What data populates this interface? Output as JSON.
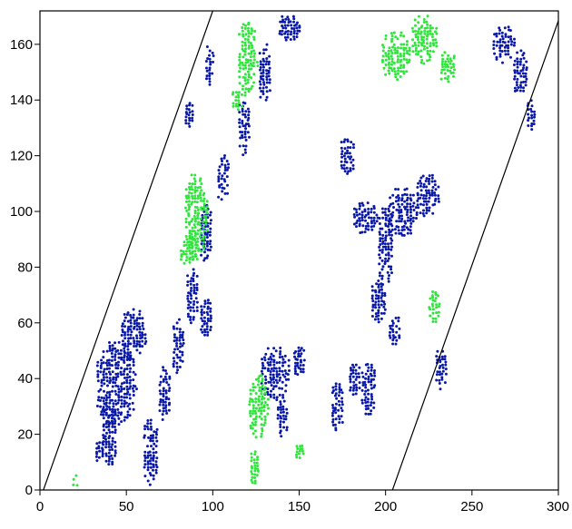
{
  "chart_data": {
    "type": "scatter",
    "title": "",
    "xlabel": "",
    "ylabel": "",
    "xlim": [
      0,
      300
    ],
    "ylim": [
      0,
      172
    ],
    "x_ticks": [
      "0",
      "50",
      "100",
      "150",
      "200",
      "250",
      "300"
    ],
    "y_ticks": [
      "0",
      "20",
      "40",
      "60",
      "80",
      "100",
      "120",
      "140",
      "160"
    ],
    "grid": false,
    "legend": "none",
    "boundary_lines": [
      {
        "x": [
          2,
          100
        ],
        "y": [
          0,
          172
        ]
      },
      {
        "x": [
          204,
          302
        ],
        "y": [
          0,
          172
        ]
      }
    ],
    "series": [
      {
        "color": "#0a18a8",
        "regions": [
          {
            "center": [
              44,
              38
            ],
            "rx": 12,
            "ry": 16
          },
          {
            "center": [
              54,
              56
            ],
            "rx": 8,
            "ry": 10
          },
          {
            "center": [
              40,
              20
            ],
            "rx": 5,
            "ry": 12
          },
          {
            "center": [
              34,
              14
            ],
            "rx": 3,
            "ry": 5
          },
          {
            "center": [
              98,
              152
            ],
            "rx": 3,
            "ry": 8
          },
          {
            "center": [
              86,
              135
            ],
            "rx": 3,
            "ry": 5
          },
          {
            "center": [
              64,
              14
            ],
            "rx": 5,
            "ry": 12
          },
          {
            "center": [
              72,
              35
            ],
            "rx": 4,
            "ry": 10
          },
          {
            "center": [
              80,
              52
            ],
            "rx": 4,
            "ry": 10
          },
          {
            "center": [
              88,
              70
            ],
            "rx": 4,
            "ry": 10
          },
          {
            "center": [
              96,
              92
            ],
            "rx": 4,
            "ry": 11
          },
          {
            "center": [
              106,
              112
            ],
            "rx": 4,
            "ry": 9
          },
          {
            "center": [
              118,
              130
            ],
            "rx": 4,
            "ry": 10
          },
          {
            "center": [
              130,
              150
            ],
            "rx": 4,
            "ry": 11
          },
          {
            "center": [
              144,
              166
            ],
            "rx": 7,
            "ry": 5
          },
          {
            "center": [
              96,
              62
            ],
            "rx": 4,
            "ry": 7
          },
          {
            "center": [
              136,
              42
            ],
            "rx": 9,
            "ry": 10
          },
          {
            "center": [
              150,
              46
            ],
            "rx": 4,
            "ry": 6
          },
          {
            "center": [
              140,
              27
            ],
            "rx": 4,
            "ry": 8
          },
          {
            "center": [
              172,
              30
            ],
            "rx": 4,
            "ry": 9
          },
          {
            "center": [
              182,
              40
            ],
            "rx": 4,
            "ry": 6
          },
          {
            "center": [
              190,
              36
            ],
            "rx": 5,
            "ry": 10
          },
          {
            "center": [
              178,
              120
            ],
            "rx": 5,
            "ry": 7
          },
          {
            "center": [
              188,
              98
            ],
            "rx": 8,
            "ry": 6
          },
          {
            "center": [
              200,
              88
            ],
            "rx": 5,
            "ry": 16
          },
          {
            "center": [
              210,
              100
            ],
            "rx": 9,
            "ry": 9
          },
          {
            "center": [
              224,
              106
            ],
            "rx": 7,
            "ry": 8
          },
          {
            "center": [
              196,
              68
            ],
            "rx": 5,
            "ry": 8
          },
          {
            "center": [
              205,
              58
            ],
            "rx": 4,
            "ry": 6
          },
          {
            "center": [
              232,
              44
            ],
            "rx": 4,
            "ry": 8
          },
          {
            "center": [
              268,
              160
            ],
            "rx": 7,
            "ry": 7
          },
          {
            "center": [
              278,
              150
            ],
            "rx": 5,
            "ry": 9
          },
          {
            "center": [
              284,
              135
            ],
            "rx": 3,
            "ry": 6
          }
        ]
      },
      {
        "color": "#2ee63a",
        "regions": [
          {
            "center": [
              90,
              98
            ],
            "rx": 7,
            "ry": 16
          },
          {
            "center": [
              86,
              86
            ],
            "rx": 6,
            "ry": 6
          },
          {
            "center": [
              120,
              155
            ],
            "rx": 6,
            "ry": 14
          },
          {
            "center": [
              114,
              140
            ],
            "rx": 4,
            "ry": 4
          },
          {
            "center": [
              126,
              30
            ],
            "rx": 6,
            "ry": 12
          },
          {
            "center": [
              124,
              8
            ],
            "rx": 3,
            "ry": 8
          },
          {
            "center": [
              150,
              14
            ],
            "rx": 3,
            "ry": 3
          },
          {
            "center": [
              206,
              156
            ],
            "rx": 9,
            "ry": 9
          },
          {
            "center": [
              222,
              162
            ],
            "rx": 8,
            "ry": 9
          },
          {
            "center": [
              236,
              152
            ],
            "rx": 5,
            "ry": 6
          },
          {
            "center": [
              228,
              66
            ],
            "rx": 4,
            "ry": 6
          },
          {
            "center": [
              20,
              3
            ],
            "rx": 2,
            "ry": 3
          }
        ]
      }
    ]
  }
}
